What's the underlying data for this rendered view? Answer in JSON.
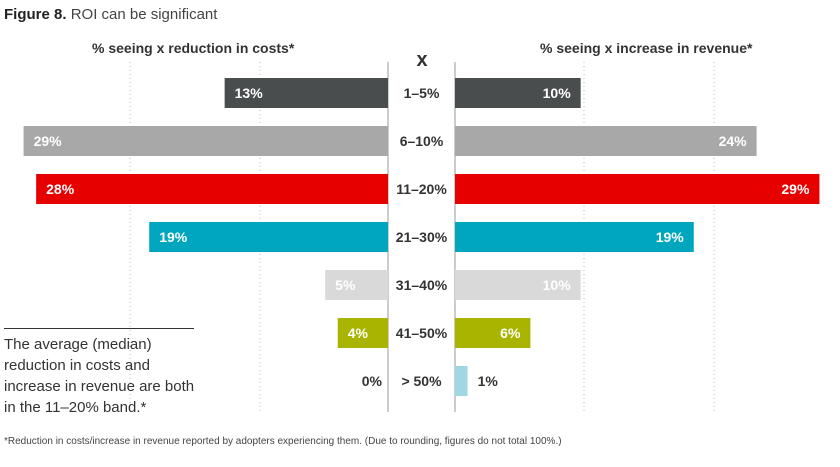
{
  "figure": {
    "number": "Figure 8.",
    "title": "ROI can be significant"
  },
  "chart_data": {
    "type": "bar",
    "orientation": "horizontal-butterfly",
    "title": "ROI can be significant",
    "center_header": "x",
    "left_label": "% seeing x reduction in costs*",
    "right_label": "% seeing x increase in revenue*",
    "categories": [
      "1–5%",
      "6–10%",
      "11–20%",
      "21–30%",
      "31–40%",
      "41–50%",
      "> 50%"
    ],
    "series": [
      {
        "name": "% seeing x reduction in costs*",
        "side": "left",
        "values": [
          13,
          29,
          28,
          19,
          5,
          4,
          0
        ]
      },
      {
        "name": "% seeing x increase in revenue*",
        "side": "right",
        "values": [
          10,
          24,
          29,
          19,
          10,
          6,
          1
        ]
      }
    ],
    "value_labels_left": [
      "13%",
      "29%",
      "28%",
      "19%",
      "5%",
      "4%",
      "0%"
    ],
    "value_labels_right": [
      "10%",
      "24%",
      "29%",
      "19%",
      "10%",
      "6%",
      "1%"
    ],
    "category_colors": [
      "#4a4d4e",
      "#a8a8a8",
      "#e60000",
      "#00a6be",
      "#d9d9d9",
      "#a8b400",
      "#9fd8e3"
    ],
    "label_colors": [
      "#ffffff",
      "#ffffff",
      "#ffffff",
      "#ffffff",
      "#ffffff",
      "#ffffff",
      "#333333"
    ],
    "xlim": [
      0,
      30
    ]
  },
  "note": "The average (median) reduction in costs and increase in revenue are both in the 11–20% band.*",
  "footnote": "*Reduction in costs/increase in revenue reported by adopters experiencing them. (Due to rounding, figures do not total 100%.)"
}
